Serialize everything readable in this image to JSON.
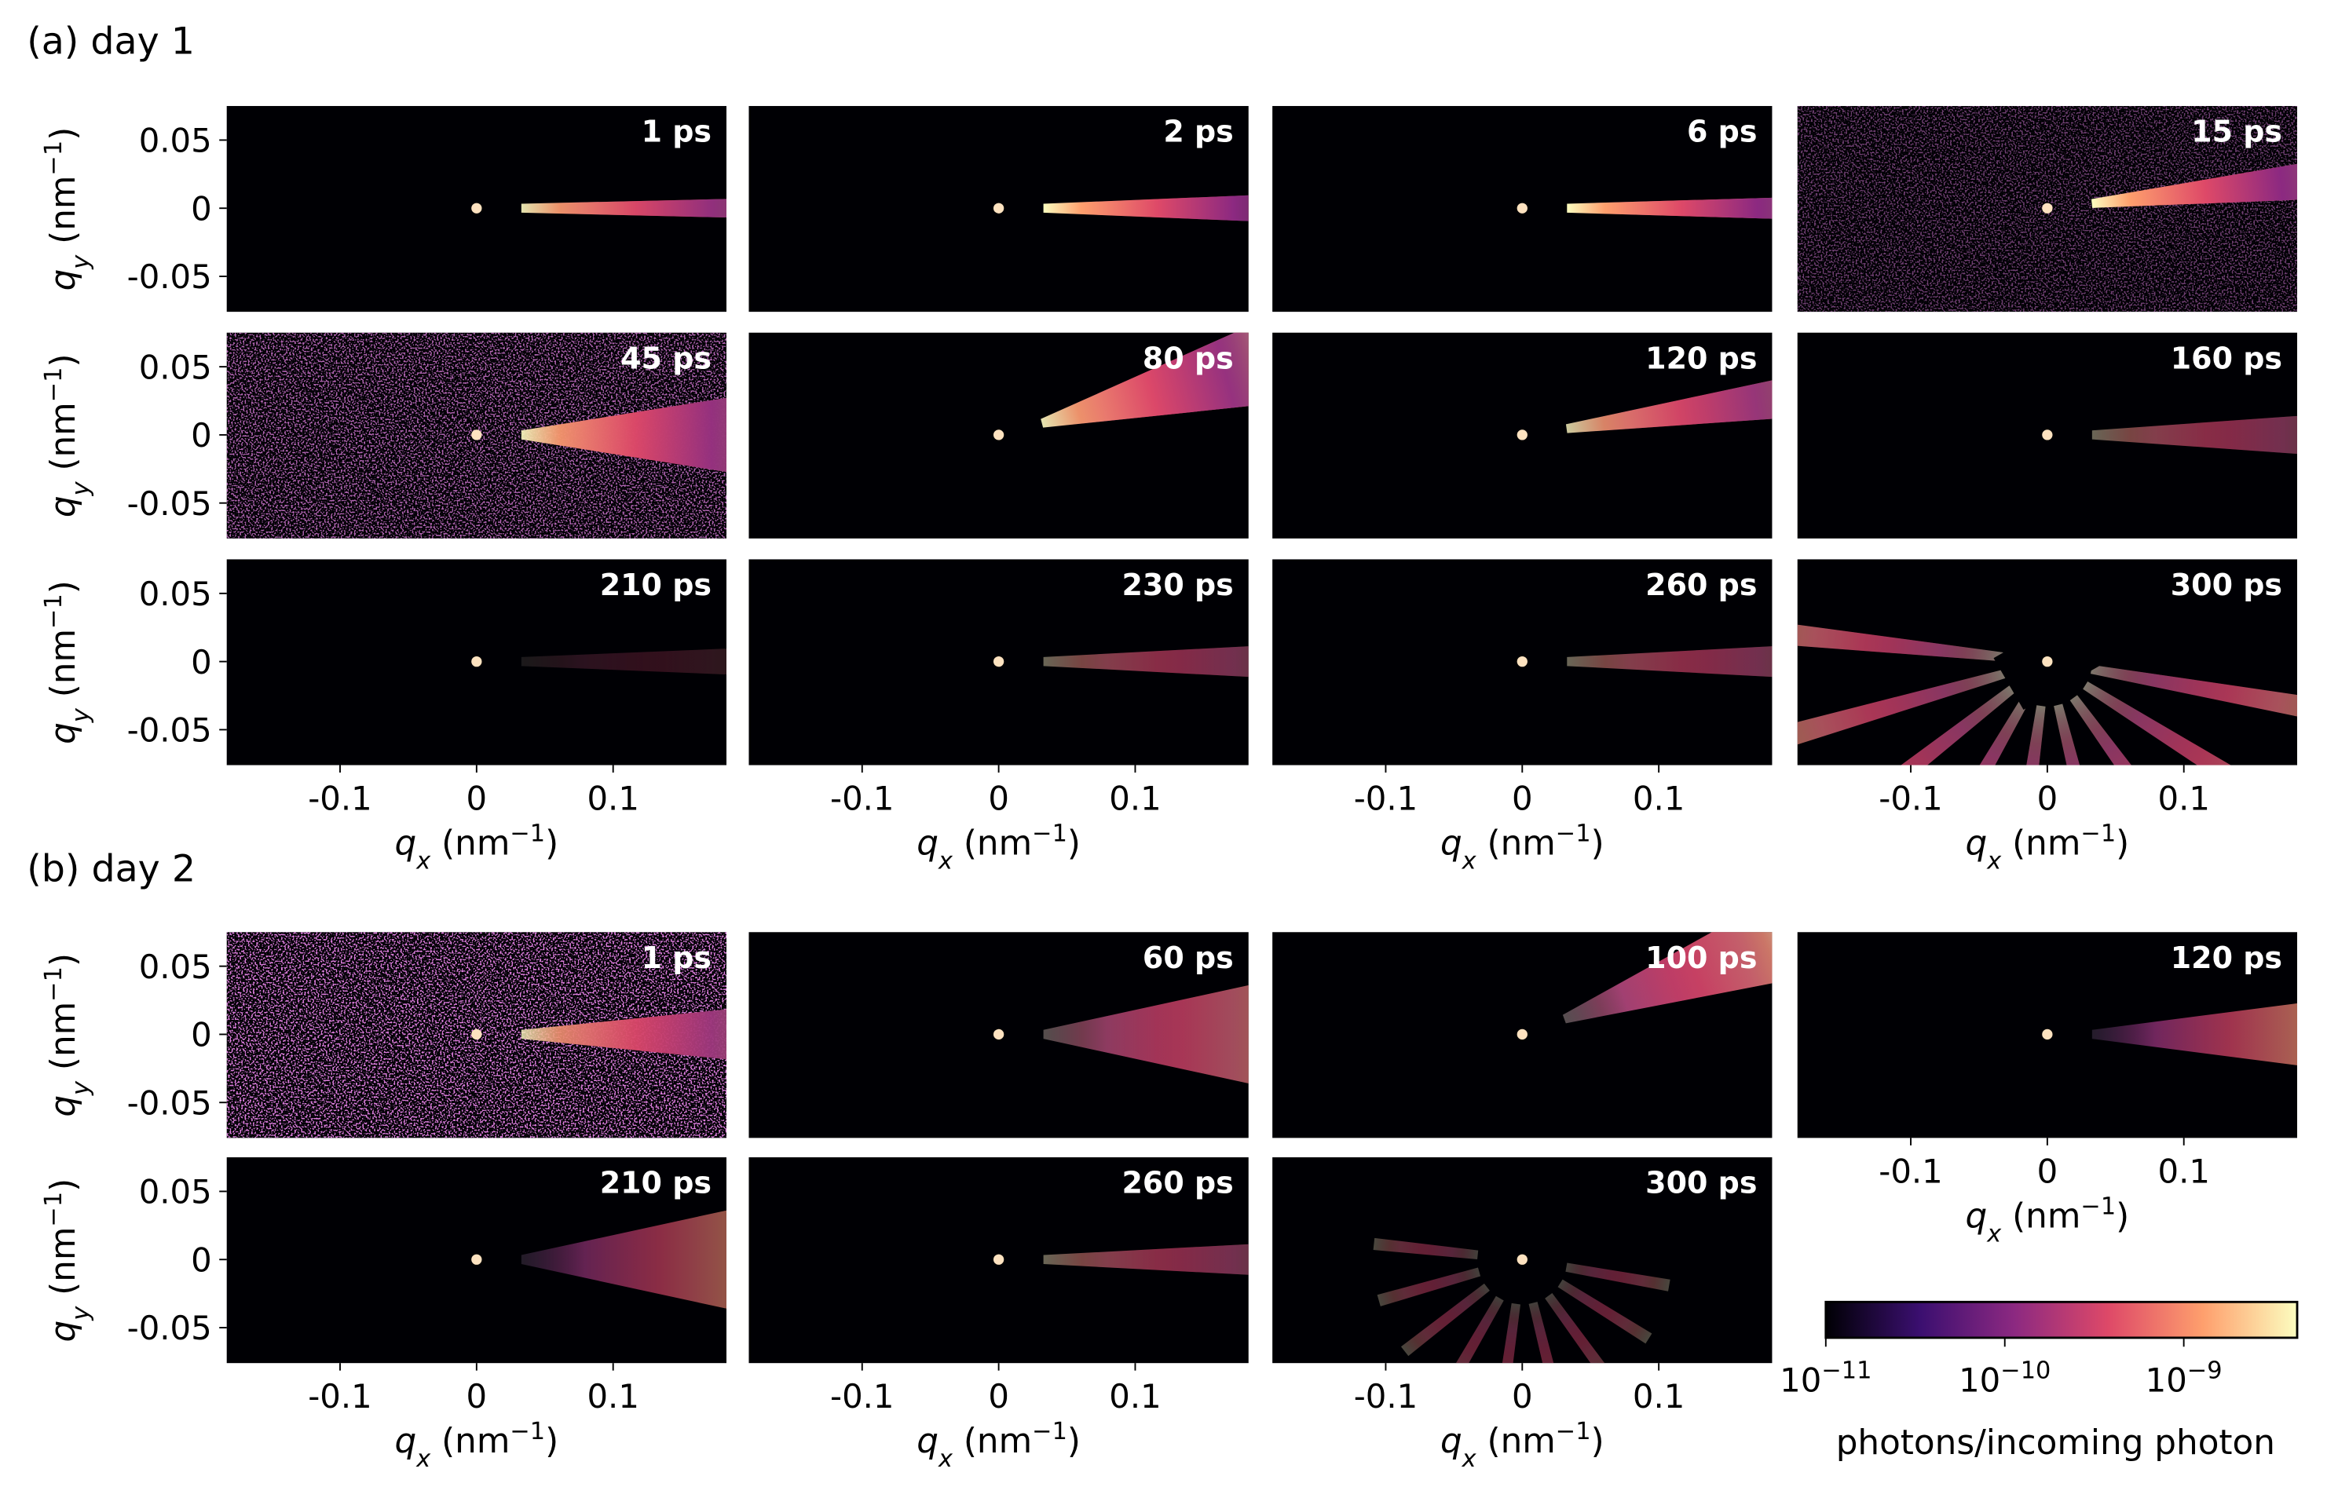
{
  "figure": {
    "sections": [
      {
        "label": "(a) day 1",
        "rows": [
          [
            "1 ps",
            "2 ps",
            "6 ps",
            "15 ps"
          ],
          [
            "45 ps",
            "80 ps",
            "120 ps",
            "160 ps"
          ],
          [
            "210 ps",
            "230 ps",
            "260 ps",
            "300 ps"
          ]
        ]
      },
      {
        "label": "(b) day 2",
        "rows": [
          [
            "1 ps",
            "60 ps",
            "100 ps",
            "120 ps"
          ],
          [
            "210 ps",
            "260 ps",
            "300 ps"
          ]
        ]
      }
    ],
    "xlim": [
      -0.183,
      0.183
    ],
    "ylim": [
      -0.076,
      0.075
    ],
    "xticks": [
      -0.1,
      0,
      0.1
    ],
    "yticks": [
      -0.05,
      0,
      0.05
    ],
    "xlabel": [
      "q",
      "x",
      " (nm",
      "−1",
      ")"
    ],
    "ylabel": [
      "q",
      "y",
      " (nm",
      "−1",
      ")"
    ],
    "colorbar": {
      "colormap": "magma",
      "log": true,
      "lim": [
        1e-11,
        4.3e-09
      ],
      "ticks": [
        {
          "value": 1e-11,
          "label": [
            "10",
            "−11"
          ]
        },
        {
          "value": 1e-10,
          "label": [
            "10",
            "−10"
          ]
        },
        {
          "value": 1e-09,
          "label": [
            "10",
            "−9"
          ]
        }
      ],
      "label": "photons/incoming photon"
    }
  }
}
